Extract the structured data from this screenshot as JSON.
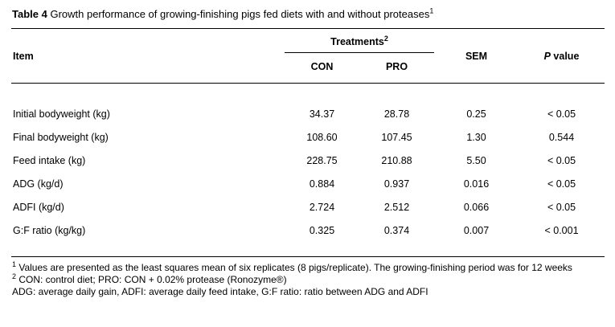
{
  "title": {
    "bold": "Table 4",
    "rest": " Growth performance of growing-finishing pigs fed diets with and without proteases",
    "sup": "1"
  },
  "table": {
    "headers": {
      "item": "Item",
      "treatments": "Treatments",
      "treatments_sup": "2",
      "con": "CON",
      "pro": "PRO",
      "sem": "SEM",
      "p_italic": "P",
      "p_rest": " value"
    },
    "rows": [
      {
        "item": "Initial bodyweight (kg)",
        "con": "34.37",
        "pro": "28.78",
        "sem": "0.25",
        "p": "< 0.05"
      },
      {
        "item": "Final bodyweight (kg)",
        "con": "108.60",
        "pro": "107.45",
        "sem": "1.30",
        "p": "0.544"
      },
      {
        "item": "Feed intake (kg)",
        "con": "228.75",
        "pro": "210.88",
        "sem": "5.50",
        "p": "< 0.05"
      },
      {
        "item": "ADG (kg/d)",
        "con": "0.884",
        "pro": "0.937",
        "sem": "0.016",
        "p": "< 0.05"
      },
      {
        "item": "ADFI (kg/d)",
        "con": "2.724",
        "pro": "2.512",
        "sem": "0.066",
        "p": "< 0.05"
      },
      {
        "item": "G:F ratio (kg/kg)",
        "con": "0.325",
        "pro": "0.374",
        "sem": "0.007",
        "p": "< 0.001"
      }
    ]
  },
  "footnotes": [
    {
      "sup": "1",
      "text": " Values are presented as the least squares mean of six replicates (8 pigs/replicate). The growing-finishing period was for 12 weeks"
    },
    {
      "sup": "2",
      "text": " CON: control diet; PRO: CON + 0.02% protease (Ronozyme®)"
    },
    {
      "sup": "",
      "text": "ADG: average daily gain, ADFI: average daily feed intake, G:F ratio: ratio between ADG and ADFI"
    }
  ]
}
